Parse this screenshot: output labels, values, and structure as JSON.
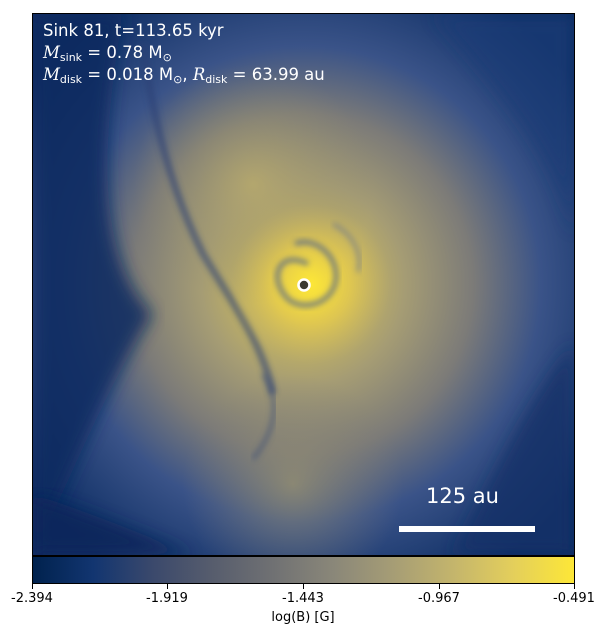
{
  "annotation": {
    "line1": "Sink 81, t=113.65 kyr",
    "msink_symbol": "M",
    "msink_sub": "sink",
    "msink_value": " = 0.78 M",
    "msink_unit_sub": "⊙",
    "mdisk_symbol": "M",
    "mdisk_sub": "disk",
    "mdisk_value": " = 0.018 M",
    "mdisk_unit_sub": "⊙",
    "rdisk_symbol": "R",
    "rdisk_sub": "disk",
    "rdisk_value": " = 63.99 au"
  },
  "scale_bar": {
    "label": "125 au"
  },
  "colorbar": {
    "label": "log(B) [G]",
    "ticks": [
      "-2.394",
      "-1.919",
      "-1.443",
      "-0.967",
      "-0.491"
    ],
    "colormap": "cividis",
    "colors": {
      "low": "#00224e",
      "mid": "#7c7b78",
      "high": "#fde737"
    }
  }
}
